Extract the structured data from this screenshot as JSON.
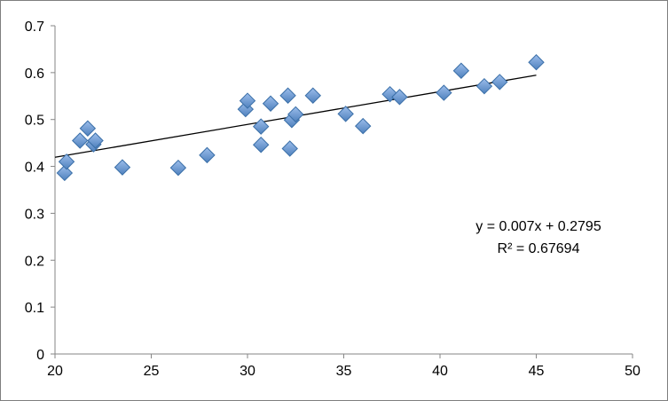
{
  "chart_data": {
    "type": "scatter",
    "title": "",
    "xlabel": "",
    "ylabel": "",
    "xlim": [
      20,
      50
    ],
    "ylim": [
      0,
      0.7
    ],
    "x_ticks": [
      20,
      25,
      30,
      35,
      40,
      45,
      50
    ],
    "y_ticks": [
      0,
      0.1,
      0.2,
      0.3,
      0.4,
      0.5,
      0.6,
      0.7
    ],
    "x_tick_labels": [
      "20",
      "25",
      "30",
      "35",
      "40",
      "45",
      "50"
    ],
    "y_tick_labels": [
      "0",
      "0.1",
      "0.2",
      "0.3",
      "0.4",
      "0.5",
      "0.6",
      "0.7"
    ],
    "grid": false,
    "legend": "none",
    "marker_color": "#4f81bd",
    "marker_edge_color": "#3a6fa8",
    "series": [
      {
        "points": [
          [
            20.5,
            0.386
          ],
          [
            20.6,
            0.41
          ],
          [
            21.3,
            0.455
          ],
          [
            21.7,
            0.481
          ],
          [
            22.0,
            0.447
          ],
          [
            22.1,
            0.455
          ],
          [
            23.5,
            0.398
          ],
          [
            26.4,
            0.397
          ],
          [
            27.9,
            0.424
          ],
          [
            29.9,
            0.522
          ],
          [
            30.0,
            0.54
          ],
          [
            30.7,
            0.446
          ],
          [
            30.7,
            0.485
          ],
          [
            31.2,
            0.534
          ],
          [
            32.1,
            0.551
          ],
          [
            32.2,
            0.438
          ],
          [
            32.3,
            0.499
          ],
          [
            32.5,
            0.511
          ],
          [
            33.4,
            0.551
          ],
          [
            35.1,
            0.512
          ],
          [
            36.0,
            0.486
          ],
          [
            37.4,
            0.554
          ],
          [
            37.9,
            0.548
          ],
          [
            40.2,
            0.557
          ],
          [
            41.1,
            0.604
          ],
          [
            42.3,
            0.571
          ],
          [
            43.1,
            0.58
          ],
          [
            45.0,
            0.622
          ]
        ]
      }
    ],
    "trendline": {
      "slope": 0.007,
      "intercept": 0.2795,
      "x_range": [
        20,
        45
      ],
      "color": "#000000"
    },
    "annotations": {
      "equation": "y = 0.007x + 0.2795",
      "r_squared": "R² = 0.67694"
    }
  }
}
